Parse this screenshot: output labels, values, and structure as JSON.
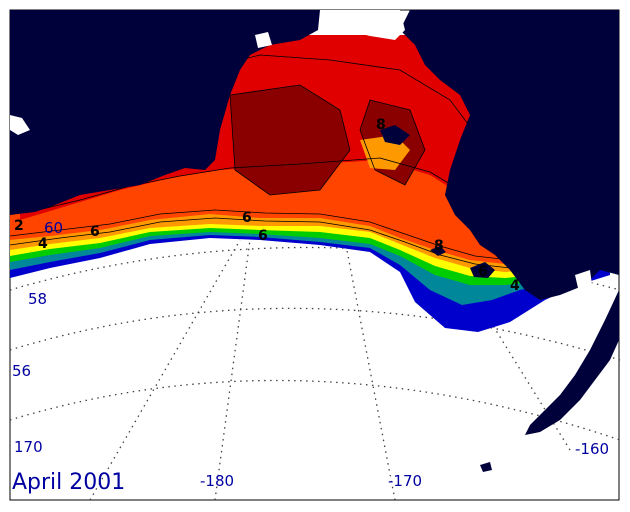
{
  "map": {
    "title": "April 2001",
    "latitude_labels": [
      "60",
      "58",
      "56"
    ],
    "longitude_labels": [
      "170",
      "-180",
      "-170",
      "-160"
    ],
    "contour_labels": [
      "2",
      "4",
      "6",
      "6",
      "8",
      "8",
      "6",
      "6",
      "4"
    ],
    "colors": {
      "land": "#00003a",
      "ocean_void": "#ffffff",
      "grid": "#404040",
      "label": "#0000a0",
      "coldest": "#0000cc",
      "teal": "#00889a",
      "green": "#00cc00",
      "yellow": "#ffff00",
      "orange": "#ff9900",
      "red_orange": "#ff4400",
      "red": "#e00000",
      "dark_red": "#8a0000"
    }
  }
}
